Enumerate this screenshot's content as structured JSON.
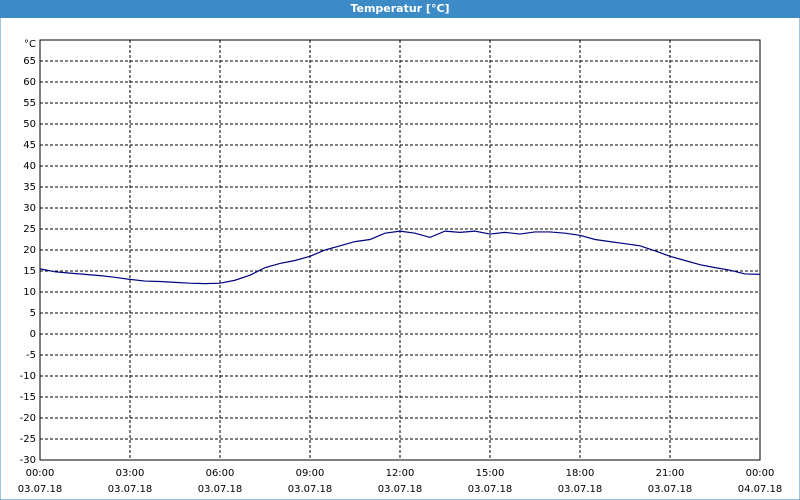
{
  "chart_data": {
    "type": "line",
    "title": "Temperatur [°C]",
    "y_label": "°C",
    "x": [
      0,
      0.5,
      1,
      1.5,
      2,
      2.5,
      3,
      3.5,
      4,
      4.5,
      5,
      5.5,
      6,
      6.5,
      7,
      7.5,
      8,
      8.5,
      9,
      9.5,
      10,
      10.5,
      11,
      11.5,
      12,
      12.5,
      13,
      13.5,
      14,
      14.5,
      15,
      15.5,
      16,
      16.5,
      17,
      17.5,
      18,
      18.5,
      19,
      19.5,
      20,
      20.5,
      21,
      21.5,
      22,
      22.5,
      23,
      23.5,
      24
    ],
    "series": [
      {
        "name": "Temperatur",
        "color": "#000080",
        "values": [
          15.5,
          14.8,
          14.5,
          14.2,
          13.9,
          13.5,
          13,
          12.6,
          12.5,
          12.3,
          12.1,
          12,
          12.1,
          12.8,
          14,
          15.8,
          16.8,
          17.5,
          18.5,
          20,
          21,
          22,
          22.5,
          24,
          24.5,
          24,
          23,
          24.5,
          24.2,
          24.5,
          23.8,
          24.2,
          23.8,
          24.3,
          24.3,
          24,
          23.5,
          22.5,
          22,
          21.5,
          21,
          19.8,
          18.5,
          17.5,
          16.5,
          15.8,
          15.2,
          14.3,
          14.2
        ]
      }
    ],
    "xlim": [
      0,
      24
    ],
    "xticks": [
      {
        "value": 0,
        "label": "00:00"
      },
      {
        "value": 3,
        "label": "03:00"
      },
      {
        "value": 6,
        "label": "06:00"
      },
      {
        "value": 9,
        "label": "09:00"
      },
      {
        "value": 12,
        "label": "12:00"
      },
      {
        "value": 15,
        "label": "15:00"
      },
      {
        "value": 18,
        "label": "18:00"
      },
      {
        "value": 21,
        "label": "21:00"
      },
      {
        "value": 24,
        "label": "00:00"
      }
    ],
    "xtick_dates": [
      "03.07.18",
      "03.07.18",
      "03.07.18",
      "03.07.18",
      "03.07.18",
      "03.07.18",
      "03.07.18",
      "03.07.18",
      "04.07.18"
    ],
    "ylim": [
      -30,
      70
    ],
    "yticks": [
      -30,
      -25,
      -20,
      -15,
      -10,
      -5,
      0,
      5,
      10,
      15,
      20,
      25,
      30,
      35,
      40,
      45,
      50,
      55,
      60,
      65
    ],
    "grid": true
  }
}
